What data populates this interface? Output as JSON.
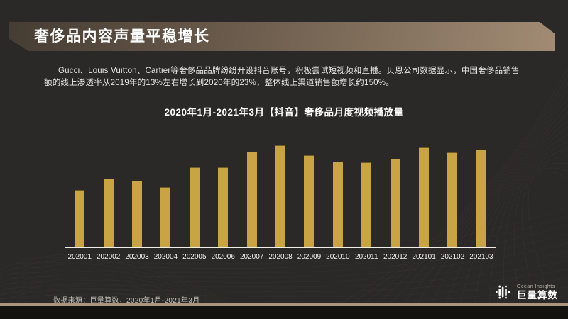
{
  "slide": {
    "title": "奢侈品内容声量平稳增长",
    "body_text": "Gucci、Louis Vuitton、Cartier等奢侈品品牌纷纷开设抖音账号，积极尝试短视频和直播。贝恩公司数据显示，中国奢侈品销售额的线上渗透率从2019年的13%左右增长到2020年的23%，整体线上渠道销售额增长约150%。",
    "footer_source": "数据来源：巨量算数，2020年1月-2021年3月",
    "logo": {
      "brand_en": "Ocean Insights",
      "brand_cn": "巨量算数"
    }
  },
  "chart_data": {
    "type": "bar",
    "title": "2020年1月-2021年3月【抖音】奢侈品月度视频播放量",
    "categories": [
      "202001",
      "202002",
      "202003",
      "202004",
      "202005",
      "202006",
      "202007",
      "202008",
      "202009",
      "202010",
      "202011",
      "202012",
      "202101",
      "202102",
      "202103"
    ],
    "values": [
      56,
      67,
      65,
      59,
      78,
      78,
      94,
      100,
      90,
      84,
      83,
      87,
      98,
      93,
      96
    ],
    "value_note": "relative index estimated from bar heights; no y-axis or data labels shown; peak month 202008 = 100",
    "xlabel": "",
    "ylabel": "",
    "ylim": [
      0,
      100
    ],
    "grid": false,
    "legend": false,
    "bar_color": "#c8a445"
  },
  "colors": {
    "background": "#2a2927",
    "banner_gradient_start": "#453c33",
    "banner_gradient_end": "#a18b74",
    "bar": "#c8a445",
    "axis": "#f2efe9",
    "tan_line": "#a9947e",
    "bottom_strip": "#14120f",
    "body_text": "#e9e7e3",
    "footer_text": "#c6c3be",
    "mesh_line": "#8a7550"
  }
}
